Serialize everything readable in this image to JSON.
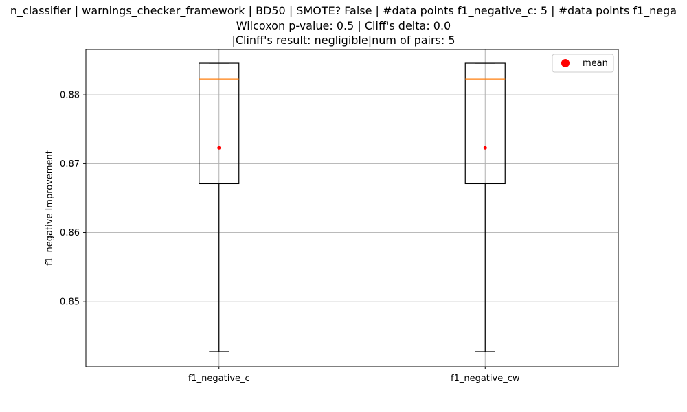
{
  "chart_data": {
    "type": "box",
    "title_lines": [
      "n_classifier | warnings_checker_framework | BD50 | SMOTE? False | #data points f1_negative_c: 5 | #data points f1_nega",
      "Wilcoxon p-value: 0.5 | Cliff's delta: 0.0",
      "|Clinff's result: negligible|num of pairs: 5"
    ],
    "xlabel": "",
    "ylabel": "f1_negative Improvement",
    "ylim": [
      0.8405,
      0.8866
    ],
    "yticks": [
      0.85,
      0.86,
      0.87,
      0.88
    ],
    "ytick_labels": [
      "0.85",
      "0.86",
      "0.87",
      "0.88"
    ],
    "grid": true,
    "legend": {
      "position": "top-right",
      "entries": [
        {
          "label": "mean",
          "color": "#ff0000",
          "marker": "circle"
        }
      ]
    },
    "categories": [
      "f1_negative_c",
      "f1_negative_cw"
    ],
    "boxes": [
      {
        "category": "f1_negative_c",
        "whisker_low": 0.8427,
        "q1": 0.8671,
        "median": 0.8823,
        "q3": 0.8846,
        "whisker_high": 0.8846,
        "mean": 0.8723
      },
      {
        "category": "f1_negative_cw",
        "whisker_low": 0.8427,
        "q1": 0.8671,
        "median": 0.8823,
        "q3": 0.8846,
        "whisker_high": 0.8846,
        "mean": 0.8723
      }
    ],
    "colors": {
      "box": "#000000",
      "median": "#ff7f0e",
      "mean": "#ff0000",
      "grid": "#b0b0b0"
    }
  }
}
